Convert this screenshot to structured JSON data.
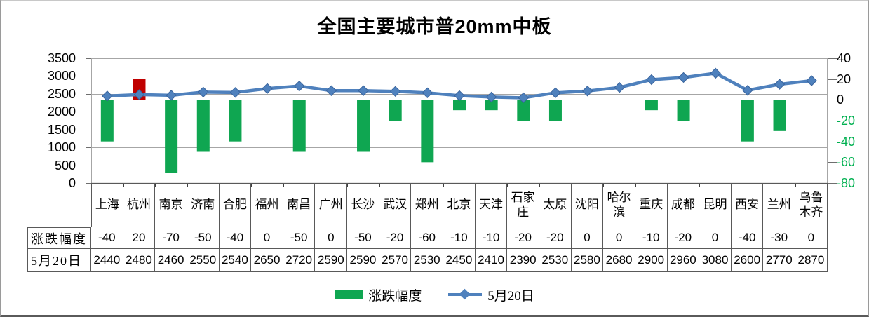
{
  "title": "全国主要城市普20mm中板",
  "chart_data": {
    "type": "combo-bar-line",
    "categories": [
      "上海",
      "杭州",
      "南京",
      "济南",
      "合肥",
      "福州",
      "南昌",
      "广州",
      "长沙",
      "武汉",
      "郑州",
      "北京",
      "天津",
      "石家庄",
      "太原",
      "沈阳",
      "哈尔滨",
      "重庆",
      "成都",
      "昆明",
      "西安",
      "兰州",
      "乌鲁木齐"
    ],
    "series": [
      {
        "name": "涨跌幅度",
        "type": "bar",
        "axis": "right",
        "values": [
          -40,
          20,
          -70,
          -50,
          -40,
          0,
          -50,
          0,
          -50,
          -20,
          -60,
          -10,
          -10,
          -20,
          -20,
          0,
          0,
          -10,
          -20,
          0,
          -40,
          -30,
          0
        ],
        "color_negative": "#0FA651",
        "color_positive": "#C00000"
      },
      {
        "name": "5月20日",
        "type": "line",
        "axis": "left",
        "values": [
          2440,
          2480,
          2460,
          2550,
          2540,
          2650,
          2720,
          2590,
          2590,
          2570,
          2530,
          2450,
          2410,
          2390,
          2530,
          2580,
          2680,
          2900,
          2960,
          3080,
          2600,
          2770,
          2870
        ],
        "color": "#4F81BD",
        "marker": "diamond",
        "marker_border": "#38639C"
      }
    ],
    "left_axis": {
      "min": 0,
      "max": 3500,
      "step": 500,
      "ticks": [
        "3500",
        "3000",
        "2500",
        "2000",
        "1500",
        "1000",
        "500",
        "0"
      ],
      "label_color": "#000000"
    },
    "right_axis": {
      "min": -80,
      "max": 40,
      "step": 20,
      "ticks": [
        "40",
        "20",
        "0",
        "-20",
        "-40",
        "-60",
        "-80"
      ],
      "positive_color": "#000000",
      "negative_color": "#00B050"
    },
    "grid": {
      "on": true,
      "color": "#A6A6A6",
      "axis_line_color": "#404040"
    },
    "legend": {
      "position": "bottom",
      "entries": [
        "涨跌幅度",
        "5月20日"
      ]
    },
    "data_table": {
      "row_labels": [
        "涨跌幅度",
        "5月20日"
      ],
      "border_color": "#595959",
      "rows": [
        [
          -40,
          20,
          -70,
          -50,
          -40,
          0,
          -50,
          0,
          -50,
          -20,
          -60,
          -10,
          -10,
          -20,
          -20,
          0,
          0,
          -10,
          -20,
          0,
          -40,
          -30,
          0
        ],
        [
          2440,
          2480,
          2460,
          2550,
          2540,
          2650,
          2720,
          2590,
          2590,
          2570,
          2530,
          2450,
          2410,
          2390,
          2530,
          2580,
          2680,
          2900,
          2960,
          3080,
          2600,
          2770,
          2870
        ]
      ]
    }
  }
}
